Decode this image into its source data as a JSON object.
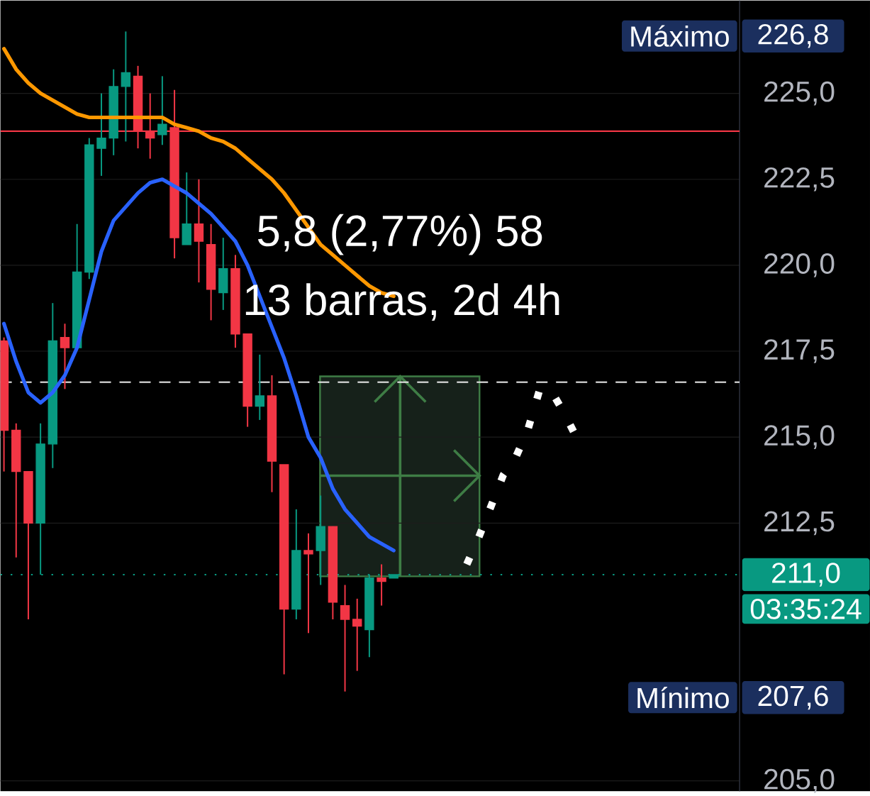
{
  "chart_data": {
    "type": "candlestick",
    "categories": [
      null,
      null,
      null,
      null,
      null,
      null,
      null,
      null,
      null,
      null,
      null,
      null,
      null,
      null,
      null,
      null,
      null,
      null,
      null,
      null,
      null,
      null,
      null,
      null,
      null,
      null,
      null,
      null,
      null,
      null,
      null,
      null,
      null,
      null,
      null,
      null,
      null,
      null,
      null,
      null,
      null,
      null,
      null,
      null,
      null,
      null,
      null,
      null
    ],
    "ohlc": [
      [
        217.8,
        217.9,
        214.0,
        215.2
      ],
      [
        215.2,
        215.4,
        211.5,
        214.0
      ],
      [
        214.0,
        214.0,
        209.7,
        212.5
      ],
      [
        212.5,
        215.4,
        211.0,
        214.8
      ],
      [
        214.8,
        218.9,
        214.1,
        217.8
      ],
      [
        217.9,
        218.3,
        216.4,
        217.6
      ],
      [
        217.6,
        221.2,
        217.6,
        219.8
      ],
      [
        219.8,
        223.7,
        219.6,
        223.5
      ],
      [
        223.4,
        225.0,
        222.6,
        223.7
      ],
      [
        223.7,
        225.7,
        223.2,
        225.2
      ],
      [
        225.2,
        226.8,
        223.6,
        225.6
      ],
      [
        225.5,
        225.8,
        223.4,
        223.9
      ],
      [
        223.9,
        225.0,
        223.1,
        223.7
      ],
      [
        223.8,
        225.5,
        223.5,
        224.1
      ],
      [
        224.0,
        225.1,
        220.2,
        220.8
      ],
      [
        220.6,
        222.7,
        220.6,
        221.2
      ],
      [
        221.2,
        222.5,
        219.5,
        220.7
      ],
      [
        220.6,
        221.2,
        218.4,
        219.3
      ],
      [
        219.2,
        220.8,
        218.7,
        219.9
      ],
      [
        219.9,
        220.3,
        217.6,
        218.0
      ],
      [
        218.0,
        218.0,
        215.3,
        215.9
      ],
      [
        215.9,
        217.4,
        215.5,
        216.2
      ],
      [
        216.2,
        216.8,
        213.4,
        214.3
      ],
      [
        214.2,
        214.2,
        208.1,
        210.0
      ],
      [
        210.0,
        212.9,
        209.7,
        211.7
      ],
      [
        211.7,
        212.2,
        209.3,
        211.6
      ],
      [
        211.7,
        213.3,
        210.7,
        212.4
      ],
      [
        212.4,
        212.4,
        209.7,
        210.2
      ],
      [
        210.1,
        210.7,
        207.6,
        209.7
      ],
      [
        209.7,
        210.3,
        208.2,
        209.5
      ],
      [
        209.4,
        211.0,
        208.6,
        210.9
      ],
      [
        210.9,
        211.3,
        210.1,
        210.8
      ],
      [
        210.9,
        211.0,
        210.9,
        211.0
      ],
      null,
      null,
      null,
      null,
      null,
      null,
      null,
      null,
      null,
      null,
      null,
      null,
      null,
      null,
      null
    ],
    "colors": [
      "#f23645",
      "#f23645",
      "#f23645",
      "#089981",
      "#089981",
      "#f23645",
      "#089981",
      "#089981",
      "#089981",
      "#089981",
      "#089981",
      "#f23645",
      "#f23645",
      "#089981",
      "#f23645",
      "#089981",
      "#f23645",
      "#f23645",
      "#089981",
      "#f23645",
      "#f23645",
      "#089981",
      "#f23645",
      "#f23645",
      "#089981",
      "#f23645",
      "#089981",
      "#f23645",
      "#f23645",
      "#f23645",
      "#089981",
      "#f23645",
      "#089981",
      null,
      null,
      null,
      null,
      null,
      null,
      null,
      null,
      null,
      null,
      null,
      null,
      null,
      null,
      null
    ],
    "series": [
      {
        "type": "line",
        "color": "#ff9800",
        "values": [
          226.3,
          225.7,
          225.3,
          225.0,
          224.8,
          224.6,
          224.4,
          224.3,
          224.3,
          224.3,
          224.3,
          224.3,
          224.3,
          224.3,
          224.1,
          224.0,
          223.9,
          223.7,
          223.6,
          223.4,
          223.1,
          222.8,
          222.5,
          222.1,
          221.6,
          221.1,
          220.6,
          220.3,
          220.0,
          219.7,
          219.4,
          219.2,
          219.1,
          null,
          null,
          null,
          null,
          null,
          null,
          null,
          null,
          null,
          null,
          null,
          null,
          null,
          null,
          null
        ]
      },
      {
        "type": "line",
        "color": "#2962ff",
        "values": [
          218.3,
          217.2,
          216.3,
          216.0,
          216.3,
          216.8,
          217.6,
          219.0,
          220.4,
          221.3,
          221.7,
          222.1,
          222.4,
          222.5,
          222.3,
          222.1,
          221.8,
          221.5,
          221.1,
          220.7,
          220.0,
          219.1,
          218.2,
          217.3,
          216.2,
          215.0,
          214.4,
          213.5,
          212.9,
          212.5,
          212.1,
          211.9,
          211.7,
          null,
          null,
          null,
          null,
          null,
          null,
          null,
          null,
          null,
          null,
          null,
          null,
          null,
          null,
          null
        ]
      },
      {
        "type": "line",
        "color": "#ffffff",
        "line_style": "dotted",
        "values": [
          null,
          null,
          null,
          null,
          null,
          null,
          null,
          null,
          null,
          null,
          null,
          null,
          null,
          null,
          null,
          null,
          null,
          null,
          null,
          null,
          null,
          null,
          null,
          null,
          null,
          null,
          null,
          null,
          null,
          null,
          null,
          null,
          null,
          null,
          null,
          null,
          null,
          null,
          211.3,
          212.1,
          213.0,
          213.9,
          214.4,
          215.2,
          216.4,
          216.3,
          215.7,
          215.0
        ]
      }
    ],
    "ylim": [
      204.7,
      227.7
    ],
    "yticks": [
      {
        "value": 205.0,
        "label": "205,0"
      },
      {
        "value": 212.5,
        "label": "212,5"
      },
      {
        "value": 215.0,
        "label": "215,0"
      },
      {
        "value": 217.5,
        "label": "217,5"
      },
      {
        "value": 220.0,
        "label": "220,0"
      },
      {
        "value": 222.5,
        "label": "222,5"
      },
      {
        "value": 225.0,
        "label": "225,0"
      }
    ],
    "tick_labels": "y",
    "grid": "y",
    "ref_lines": [
      {
        "axis": "y",
        "value": 223.9,
        "color": "#f23645"
      },
      {
        "axis": "y",
        "value": 216.6,
        "color": "#e0e0e0",
        "line_style": "dashed"
      },
      {
        "axis": "y",
        "value": 211.0,
        "color": "#089981",
        "line_style": "dotted",
        "label": "211,0"
      }
    ],
    "annotations": [
      "5,8 (2,77%) 58",
      "13 barras, 2d 4h",
      "Máximo",
      "226,8",
      "03:35:24",
      "Mínimo",
      "207,6"
    ]
  }
}
